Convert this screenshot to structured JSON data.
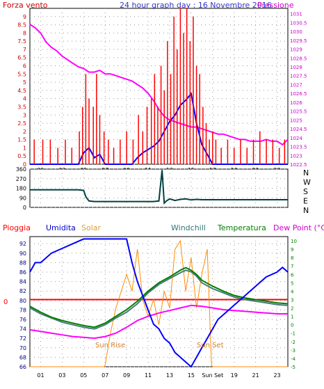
{
  "chart_data": [
    {
      "type": "line",
      "title": "24 hour graph day : 16 Novembre 2016",
      "left_axis_label": "Forza vento",
      "right_axis_label": "Pressione",
      "left_ticks": [
        "0",
        "0.5",
        "1",
        "1.5",
        "2",
        "2.5",
        "3",
        "3.5",
        "4",
        "4.5",
        "5",
        "5.5",
        "6",
        "6.5",
        "7",
        "7.5",
        "8",
        "8.5",
        "9"
      ],
      "right_ticks": [
        "1022.5",
        "1023",
        "1023.5",
        "1024",
        "1024.5",
        "1025",
        "1025.5",
        "1026",
        "1026.5",
        "1027",
        "1027.5",
        "1028",
        "1028.5",
        "1029",
        "1029.5",
        "1030",
        "1030.5",
        "1031"
      ],
      "x_ticks": [
        "01",
        "03",
        "05",
        "07",
        "09",
        "11",
        "13",
        "15",
        "17",
        "19",
        "21",
        "23"
      ],
      "xlim": [
        0,
        24
      ],
      "ylim_left": [
        0,
        9.5
      ],
      "ylim_right": [
        1022.5,
        1031.3
      ],
      "series": [
        {
          "color": "#ff00ff",
          "axis": "right",
          "x": [
            0,
            0.5,
            1,
            1.5,
            2,
            2.5,
            3,
            3.5,
            4,
            4.5,
            5,
            5.5,
            6,
            6.5,
            7,
            7.5,
            8,
            8.5,
            9,
            9.5,
            10,
            10.5,
            11,
            11.5,
            12,
            12.5,
            13,
            13.5,
            14,
            14.5,
            15,
            15.5,
            16,
            16.5,
            17,
            17.5,
            18,
            18.5,
            19,
            19.5,
            20,
            20.5,
            21,
            21.5,
            22,
            22.5,
            23,
            23.5,
            24
          ],
          "y": [
            1030.4,
            1030.2,
            1029.9,
            1029.4,
            1029.1,
            1028.9,
            1028.6,
            1028.4,
            1028.2,
            1028.0,
            1027.9,
            1027.7,
            1027.7,
            1027.8,
            1027.6,
            1027.6,
            1027.5,
            1027.4,
            1027.3,
            1027.2,
            1027.0,
            1026.8,
            1026.5,
            1026.1,
            1025.6,
            1025.2,
            1025.0,
            1024.9,
            1024.8,
            1024.7,
            1024.6,
            1024.6,
            1024.5,
            1024.4,
            1024.3,
            1024.2,
            1024.2,
            1024.1,
            1024.0,
            1023.9,
            1023.9,
            1023.8,
            1023.8,
            1023.8,
            1023.9,
            1023.8,
            1023.8,
            1023.6,
            1023.9
          ]
        },
        {
          "color": "#0000ff",
          "axis": "left",
          "x": [
            0,
            0.5,
            1,
            1.5,
            2,
            2.5,
            3,
            3.5,
            4,
            4.5,
            5,
            5.5,
            6,
            6.5,
            7,
            7.5,
            8,
            8.5,
            9,
            9.5,
            10,
            10.5,
            11,
            11.5,
            12,
            12.5,
            13,
            13.5,
            14,
            14.5,
            15,
            15.5,
            16,
            16.5,
            17,
            17.5,
            18,
            18.5,
            19,
            19.5,
            20,
            20.5,
            21,
            21.5,
            22,
            22.5,
            23,
            23.5,
            24
          ],
          "y": [
            0,
            0,
            0,
            0,
            0,
            0,
            0,
            0,
            0,
            0,
            0.7,
            1.0,
            0.4,
            0.6,
            0,
            0,
            0,
            0,
            0,
            0,
            0.4,
            0.7,
            0.9,
            1.1,
            1.4,
            2.0,
            2.6,
            3.0,
            3.6,
            3.9,
            4.3,
            2.5,
            1.2,
            0.6,
            0,
            0,
            0,
            0,
            0,
            0,
            0,
            0,
            0,
            0,
            0,
            0,
            0,
            0,
            0
          ]
        },
        {
          "color": "#ff0000",
          "axis": "left",
          "style": "bars",
          "x": [
            0.4,
            1.2,
            1.9,
            2.6,
            3.3,
            3.9,
            4.6,
            4.9,
            5.2,
            5.5,
            5.9,
            6.2,
            6.5,
            6.9,
            7.3,
            7.8,
            8.4,
            9.0,
            9.6,
            10.1,
            10.5,
            10.9,
            11.3,
            11.6,
            11.9,
            12.2,
            12.5,
            12.8,
            13.1,
            13.4,
            13.7,
            14.0,
            14.3,
            14.6,
            14.9,
            15.2,
            15.5,
            15.8,
            16.1,
            16.4,
            16.7,
            17.0,
            17.3,
            17.8,
            18.4,
            19.0,
            19.6,
            20.2,
            20.8,
            21.4,
            22.0,
            22.6,
            23.2,
            23.7
          ],
          "y": [
            1.5,
            1.5,
            1.5,
            1,
            1.5,
            1,
            2,
            3.5,
            5.5,
            4,
            3.5,
            5.5,
            3,
            2,
            1.5,
            1,
            1.5,
            2,
            1.5,
            3,
            2,
            3.5,
            4,
            5.5,
            3.5,
            6,
            4.5,
            7.5,
            5.5,
            9,
            7,
            9.5,
            8,
            9.5,
            7.5,
            9,
            6,
            5.5,
            3.5,
            2.5,
            1.5,
            2,
            1.5,
            1,
            1.5,
            1,
            1.5,
            1,
            1.5,
            2,
            1.5,
            1.5,
            1,
            1.5
          ]
        }
      ]
    },
    {
      "type": "line",
      "title": "",
      "left_ticks": [
        "0",
        "90",
        "180",
        "270",
        "360"
      ],
      "right_labels": [
        "N",
        "W",
        "S",
        "E",
        "N"
      ],
      "xlim": [
        0,
        24
      ],
      "ylim": [
        0,
        360
      ],
      "series": [
        {
          "color": "#004040",
          "x": [
            0,
            1,
            2,
            3,
            4,
            4.5,
            5,
            5.2,
            5.5,
            6,
            7,
            8,
            9,
            10,
            11,
            11.5,
            12,
            12.3,
            12.5,
            12.7,
            13,
            13.5,
            14,
            14.5,
            15,
            15.5,
            16,
            17,
            18,
            19,
            20,
            21,
            22,
            23,
            24
          ],
          "y": [
            165,
            165,
            165,
            165,
            165,
            165,
            160,
            100,
            60,
            55,
            55,
            55,
            55,
            55,
            55,
            55,
            60,
            350,
            40,
            60,
            80,
            65,
            75,
            80,
            70,
            75,
            72,
            72,
            72,
            72,
            72,
            72,
            72,
            72,
            72
          ]
        }
      ]
    },
    {
      "type": "line",
      "title": "",
      "legend": [
        "Pioggia",
        "Umidita",
        "Solar",
        "Windchill",
        "Temperatura",
        "Dew Point (°C)"
      ],
      "left_ticks": [
        "66",
        "68",
        "70",
        "72",
        "74",
        "76",
        "78",
        "80",
        "82",
        "84",
        "86",
        "88",
        "90",
        "92"
      ],
      "right_ticks": [
        "-5",
        "-4",
        "-3",
        "-2",
        "-1",
        "0",
        "1",
        "2",
        "3",
        "4",
        "5",
        "6",
        "7",
        "8",
        "9",
        "10"
      ],
      "rain_label": "0",
      "x_ticks": [
        "01",
        "03",
        "05",
        "07",
        "09",
        "11",
        "13",
        "15",
        "Sun Set",
        "19",
        "21",
        "23"
      ],
      "annotations": [
        "Sun Rise",
        "Sun Set"
      ],
      "xlim": [
        0,
        24
      ],
      "ylim_left": [
        66,
        93.5
      ],
      "ylim_right": [
        -5,
        10.5
      ],
      "series": [
        {
          "name": "Umidita",
          "color": "#0000ff",
          "axis": "left",
          "x": [
            0,
            0.5,
            1,
            1.5,
            2,
            3,
            4,
            5,
            6,
            7,
            8,
            9,
            9.5,
            10,
            10.5,
            11,
            11.5,
            12,
            12.5,
            13,
            13.5,
            14,
            14.5,
            15,
            15.5,
            16,
            16.5,
            17,
            17.5,
            18,
            18.5,
            19,
            20,
            21,
            22,
            23,
            23.5,
            24
          ],
          "y": [
            86,
            88,
            88,
            89,
            90,
            91,
            92,
            93,
            93,
            93,
            93,
            93,
            88,
            84,
            81,
            78,
            75,
            74,
            72,
            71,
            69,
            68,
            67,
            66,
            68,
            70,
            72,
            74,
            76,
            77,
            78,
            79,
            81,
            83,
            85,
            86,
            87,
            86
          ]
        },
        {
          "name": "Windchill",
          "color": "#4a7a7a",
          "axis": "right",
          "x": [
            0,
            1,
            2,
            3,
            4,
            5,
            6,
            7,
            8,
            9,
            10,
            11,
            12,
            13,
            14,
            14.5,
            15,
            15.5,
            16,
            17,
            18,
            19,
            20,
            21,
            22,
            23,
            24
          ],
          "y": [
            2.0,
            1.3,
            0.8,
            0.3,
            0.0,
            -0.3,
            -0.5,
            0.0,
            0.8,
            1.5,
            2.5,
            3.8,
            4.8,
            5.5,
            6.2,
            6.5,
            6.3,
            5.8,
            5.0,
            4.3,
            3.8,
            3.3,
            3.0,
            2.8,
            2.6,
            2.4,
            2.3
          ]
        },
        {
          "name": "Temperatura",
          "color": "#008000",
          "axis": "right",
          "x": [
            0,
            1,
            2,
            3,
            4,
            5,
            6,
            7,
            8,
            9,
            10,
            11,
            12,
            13,
            14,
            14.5,
            15,
            15.5,
            16,
            17,
            18,
            19,
            20,
            21,
            22,
            23,
            24
          ],
          "y": [
            2.2,
            1.5,
            0.9,
            0.5,
            0.2,
            -0.1,
            -0.3,
            0.2,
            1.0,
            1.8,
            2.8,
            4.0,
            5.0,
            5.7,
            6.5,
            6.8,
            6.5,
            6.0,
            5.3,
            4.6,
            4.0,
            3.5,
            3.2,
            3.0,
            2.8,
            2.6,
            2.5
          ]
        },
        {
          "name": "Dew Point (°C)",
          "color": "#ff00ff",
          "axis": "right",
          "x": [
            0,
            1,
            2,
            3,
            4,
            5,
            6,
            7,
            8,
            9,
            10,
            11,
            12,
            13,
            14,
            15,
            16,
            17,
            18,
            19,
            20,
            21,
            22,
            23,
            24
          ],
          "y": [
            -0.6,
            -0.8,
            -1.0,
            -1.2,
            -1.4,
            -1.5,
            -1.6,
            -1.4,
            -1.0,
            -0.3,
            0.5,
            1.0,
            1.4,
            1.7,
            2.0,
            2.3,
            2.2,
            2.0,
            1.8,
            1.7,
            1.6,
            1.5,
            1.4,
            1.3,
            1.3
          ]
        },
        {
          "name": "Solar",
          "color": "#ff8c00",
          "axis": "right",
          "x": [
            0,
            6.9,
            7.0,
            7.5,
            8.0,
            8.5,
            9.0,
            9.5,
            10.0,
            10.5,
            11.0,
            11.5,
            12.0,
            12.5,
            13.0,
            13.5,
            14.0,
            14.5,
            15.0,
            15.5,
            16.0,
            16.5,
            16.9,
            17.0,
            24
          ],
          "y": [
            -5,
            -5,
            -4.8,
            -1,
            2,
            4,
            6,
            4,
            9,
            3,
            1,
            3,
            0,
            4,
            2,
            9,
            10,
            4,
            8,
            2,
            6,
            9,
            -4.8,
            -5,
            -5
          ]
        },
        {
          "name": "Pioggia",
          "color": "#ff0000",
          "axis": "right",
          "x": [
            0,
            24
          ],
          "y": [
            3,
            3
          ]
        }
      ]
    }
  ]
}
